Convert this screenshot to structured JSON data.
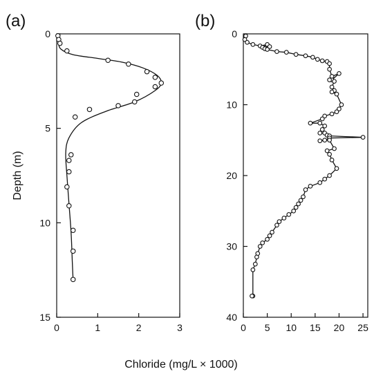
{
  "figure": {
    "ylabel": "Depth (m)",
    "xlabel": "Chloride (mg/L × 1000)"
  },
  "chart_data": [
    {
      "type": "scatter",
      "panel_label": "(a)",
      "xlabel": "Chloride (mg/L × 1000)",
      "ylabel": "Depth (m)",
      "xlim": [
        0,
        3
      ],
      "ylim": [
        15,
        0
      ],
      "y_inverted": true,
      "xticks": [
        0,
        1,
        2,
        3
      ],
      "yticks": [
        0,
        5,
        10,
        15
      ],
      "grid": false,
      "points": {
        "x": [
          0.03,
          0.05,
          0.08,
          0.25,
          1.25,
          1.75,
          2.2,
          2.4,
          2.55,
          2.4,
          1.95,
          1.9,
          0.8,
          1.5,
          0.45,
          0.35,
          0.3,
          0.3,
          0.25,
          0.3,
          0.4,
          0.4,
          0.4
        ],
        "y": [
          0.1,
          0.3,
          0.5,
          0.9,
          1.4,
          1.6,
          2.0,
          2.3,
          2.6,
          2.8,
          3.2,
          3.6,
          4.0,
          3.8,
          4.4,
          6.4,
          6.7,
          7.3,
          8.1,
          9.1,
          10.4,
          11.5,
          13.0
        ]
      },
      "fit_curve": {
        "x": [
          0.0,
          0.04,
          0.1,
          0.4,
          1.0,
          1.6,
          2.1,
          2.45,
          2.55,
          2.4,
          1.9,
          1.2,
          0.6,
          0.3,
          0.22,
          0.25,
          0.3,
          0.35,
          0.38,
          0.4
        ],
        "y": [
          0.0,
          0.4,
          0.8,
          1.1,
          1.3,
          1.5,
          1.8,
          2.2,
          2.6,
          3.0,
          3.6,
          4.1,
          4.7,
          5.5,
          6.3,
          7.5,
          9.0,
          10.5,
          12.0,
          13.0
        ]
      }
    },
    {
      "type": "line",
      "panel_label": "(b)",
      "xlabel": "Chloride (mg/L × 1000)",
      "ylabel": "Depth (m)",
      "xlim": [
        0,
        26
      ],
      "ylim": [
        40,
        0
      ],
      "y_inverted": true,
      "xticks": [
        0,
        5,
        10,
        15,
        20,
        25
      ],
      "yticks": [
        0,
        10,
        20,
        30,
        40
      ],
      "grid": false,
      "series": [
        {
          "x": [
            0.5,
            0.3,
            0.8,
            2.0,
            3.5,
            5.0,
            4.0,
            5.5,
            4.5,
            5.0,
            7.0,
            9.0,
            11.0,
            13.0,
            14.5,
            15.5,
            16.5,
            17.5,
            18.0,
            18.0,
            18.5,
            20.0,
            18.5,
            18.0,
            19.0,
            18.5,
            19.0,
            18.5,
            19.5,
            20.5,
            20.0,
            19.5,
            18.5,
            17.0,
            16.5,
            14.0,
            16.0,
            17.0,
            16.5,
            16.0,
            17.0,
            17.5,
            18.0,
            25.0,
            18.0,
            17.0,
            16.0,
            18.0,
            19.0,
            17.5,
            18.0,
            18.5,
            19.5,
            18.0,
            17.0,
            16.0,
            14.0,
            13.0,
            12.5,
            12.0,
            11.5,
            11.0,
            10.5,
            9.5,
            8.5,
            7.5,
            7.0,
            6.0,
            5.5,
            5.0,
            4.0,
            3.5,
            3.0,
            2.8,
            2.5,
            2.0,
            2.0,
            1.8
          ],
          "y": [
            0.3,
            0.8,
            1.2,
            1.5,
            1.7,
            1.5,
            1.9,
            1.8,
            2.1,
            2.2,
            2.5,
            2.6,
            2.9,
            3.1,
            3.3,
            3.6,
            3.8,
            3.9,
            4.2,
            5.0,
            6.0,
            5.6,
            6.5,
            6.5,
            6.7,
            7.5,
            8.0,
            8.2,
            8.5,
            10.0,
            10.6,
            11.0,
            11.3,
            11.6,
            12.0,
            12.6,
            12.6,
            13.0,
            13.5,
            14.0,
            14.0,
            14.3,
            14.4,
            14.6,
            14.7,
            15.0,
            15.1,
            15.0,
            16.2,
            16.5,
            17.0,
            17.8,
            19.0,
            20.0,
            20.5,
            21.0,
            21.5,
            22.0,
            23.0,
            23.5,
            24.0,
            24.5,
            25.0,
            25.5,
            26.0,
            26.5,
            27.0,
            28.0,
            28.5,
            29.0,
            29.5,
            30.0,
            31.0,
            31.5,
            32.5,
            33.3,
            37.0,
            37.0
          ]
        }
      ]
    }
  ]
}
